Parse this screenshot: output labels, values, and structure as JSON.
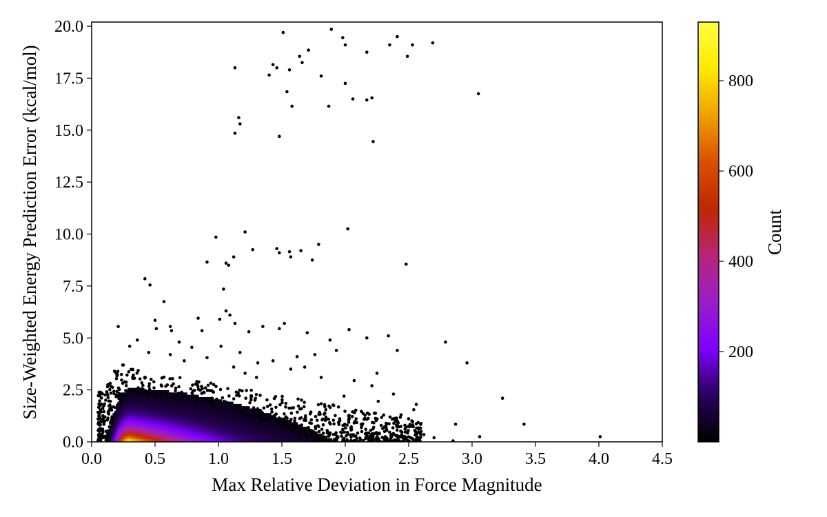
{
  "chart_data": {
    "type": "scatter",
    "subtype": "scatter-with-density-hexbin",
    "title": "",
    "xlabel": "Max Relative Deviation in Force Magnitude",
    "ylabel": "Size-Weighted Energy Prediction Error (kcal/mol)",
    "xlim": [
      0.0,
      4.5
    ],
    "ylim": [
      0.0,
      20.2
    ],
    "x_ticks": [
      "0.0",
      "0.5",
      "1.0",
      "1.5",
      "2.0",
      "2.5",
      "3.0",
      "3.5",
      "4.0",
      "4.5"
    ],
    "y_ticks": [
      "0.0",
      "2.5",
      "5.0",
      "7.5",
      "10.0",
      "12.5",
      "15.0",
      "17.5",
      "20.0"
    ],
    "grid": false,
    "point_color": "#000000",
    "outlier_points": [
      [
        1.51,
        19.7
      ],
      [
        1.89,
        19.85
      ],
      [
        1.98,
        19.45
      ],
      [
        2.0,
        19.1
      ],
      [
        2.17,
        18.75
      ],
      [
        2.35,
        19.1
      ],
      [
        2.41,
        19.5
      ],
      [
        2.49,
        18.55
      ],
      [
        2.53,
        19.1
      ],
      [
        2.69,
        19.2
      ],
      [
        1.64,
        18.55
      ],
      [
        1.71,
        18.85
      ],
      [
        1.66,
        18.25
      ],
      [
        1.43,
        18.15
      ],
      [
        1.46,
        18.0
      ],
      [
        1.13,
        18.0
      ],
      [
        1.4,
        17.65
      ],
      [
        1.56,
        17.9
      ],
      [
        1.81,
        17.6
      ],
      [
        2.0,
        17.25
      ],
      [
        1.54,
        16.85
      ],
      [
        1.58,
        16.15
      ],
      [
        1.87,
        16.15
      ],
      [
        2.06,
        16.5
      ],
      [
        2.17,
        16.45
      ],
      [
        2.21,
        16.55
      ],
      [
        3.05,
        16.75
      ],
      [
        1.16,
        15.6
      ],
      [
        1.17,
        15.3
      ],
      [
        1.13,
        14.85
      ],
      [
        1.48,
        14.7
      ],
      [
        2.22,
        14.45
      ],
      [
        1.21,
        10.1
      ],
      [
        2.02,
        10.25
      ],
      [
        0.98,
        9.85
      ],
      [
        1.46,
        9.3
      ],
      [
        1.48,
        9.1
      ],
      [
        1.56,
        9.15
      ],
      [
        1.65,
        9.2
      ],
      [
        1.79,
        9.5
      ],
      [
        1.27,
        9.25
      ],
      [
        1.57,
        8.9
      ],
      [
        1.12,
        8.9
      ],
      [
        1.06,
        8.6
      ],
      [
        1.08,
        8.5
      ],
      [
        0.91,
        8.65
      ],
      [
        1.74,
        8.75
      ],
      [
        2.48,
        8.55
      ],
      [
        0.42,
        7.85
      ],
      [
        0.46,
        7.55
      ],
      [
        1.04,
        7.35
      ],
      [
        0.57,
        6.75
      ],
      [
        1.06,
        6.3
      ],
      [
        1.09,
        6.1
      ],
      [
        1.01,
        5.9
      ],
      [
        0.84,
        5.95
      ],
      [
        0.5,
        5.85
      ],
      [
        0.62,
        5.55
      ],
      [
        0.21,
        5.55
      ],
      [
        0.51,
        5.45
      ],
      [
        0.63,
        5.35
      ],
      [
        0.87,
        5.35
      ],
      [
        1.13,
        5.7
      ],
      [
        1.24,
        5.3
      ],
      [
        1.35,
        5.55
      ],
      [
        1.52,
        5.7
      ],
      [
        1.7,
        5.25
      ],
      [
        1.48,
        5.45
      ],
      [
        2.03,
        5.4
      ],
      [
        2.17,
        5.0
      ],
      [
        2.34,
        5.1
      ],
      [
        2.79,
        4.8
      ],
      [
        2.41,
        4.4
      ],
      [
        2.96,
        3.8
      ],
      [
        2.25,
        3.3
      ],
      [
        3.24,
        2.1
      ],
      [
        2.56,
        1.8
      ],
      [
        2.54,
        1.55
      ],
      [
        2.87,
        0.85
      ],
      [
        3.41,
        0.85
      ],
      [
        3.06,
        0.25
      ],
      [
        4.01,
        0.25
      ],
      [
        2.7,
        0.2
      ],
      [
        2.85,
        0.05
      ],
      [
        2.38,
        0.4
      ],
      [
        1.76,
        4.2
      ],
      [
        1.88,
        4.9
      ],
      [
        1.93,
        4.4
      ],
      [
        1.62,
        4.1
      ],
      [
        1.43,
        3.9
      ],
      [
        1.31,
        3.8
      ],
      [
        1.17,
        4.3
      ],
      [
        1.02,
        4.6
      ],
      [
        0.79,
        4.55
      ],
      [
        0.69,
        4.8
      ],
      [
        0.3,
        4.6
      ],
      [
        0.36,
        4.9
      ],
      [
        0.62,
        4.2
      ],
      [
        0.91,
        4.05
      ],
      [
        1.21,
        3.3
      ],
      [
        1.57,
        3.5
      ],
      [
        1.81,
        3.1
      ],
      [
        2.07,
        2.95
      ],
      [
        2.21,
        2.7
      ],
      [
        2.38,
        2.3
      ],
      [
        1.99,
        2.2
      ],
      [
        2.26,
        1.95
      ],
      [
        2.44,
        1.3
      ],
      [
        2.47,
        0.8
      ],
      [
        2.31,
        0.5
      ],
      [
        2.62,
        0.35
      ],
      [
        2.05,
        0.6
      ],
      [
        2.2,
        0.55
      ],
      [
        1.3,
        3.1
      ],
      [
        1.12,
        3.6
      ],
      [
        0.73,
        3.9
      ],
      [
        0.45,
        4.3
      ],
      [
        0.18,
        3.4
      ],
      [
        0.25,
        3.7
      ],
      [
        1.68,
        3.6
      ]
    ],
    "density": {
      "metric": "Count",
      "range": [
        0,
        930
      ],
      "peak_location": [
        0.3,
        0.2
      ],
      "extent": {
        "x": [
          0.05,
          2.6
        ],
        "y": [
          0.0,
          3.8
        ]
      }
    },
    "colorbar": {
      "label": "Count",
      "colormap": "gnuplot2-like",
      "ticks": [
        "200",
        "400",
        "600",
        "800"
      ],
      "tick_values": [
        200,
        400,
        600,
        800
      ],
      "range": [
        0,
        930
      ],
      "stops": [
        "#000000",
        "#2a005c",
        "#7e00ff",
        "#9b1ec8",
        "#b8247a",
        "#c02700",
        "#d95000",
        "#f0a000",
        "#ffea00",
        "#ffff40"
      ]
    }
  }
}
